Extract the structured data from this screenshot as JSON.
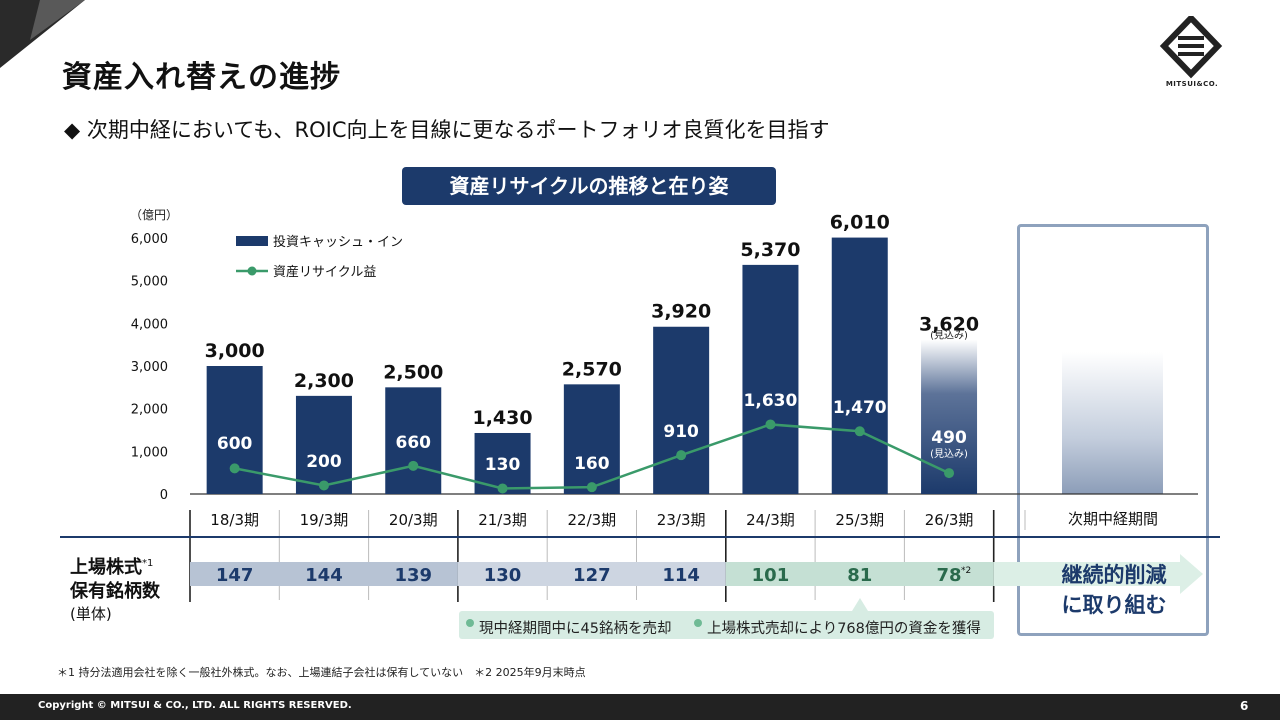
{
  "header": {
    "title": "資産入れ替えの進捗",
    "subtitle": "◆ 次期中経においても、ROIC向上を目線に更なるポートフォリオ良質化を目指す",
    "logo_text": "MITSUI&CO."
  },
  "chart_banner": "資産リサイクルの推移と在り姿",
  "chart_data": {
    "type": "bar",
    "unit_label": "（億円）",
    "categories": [
      "18/3期",
      "19/3期",
      "20/3期",
      "21/3期",
      "22/3期",
      "23/3期",
      "24/3期",
      "25/3期",
      "26/3期"
    ],
    "ylim": [
      0,
      6000
    ],
    "yticks": [
      0,
      1000,
      2000,
      3000,
      4000,
      5000,
      6000
    ],
    "y_tick_labels": [
      "0",
      "1,000",
      "2,000",
      "3,000",
      "4,000",
      "5,000",
      "6,000"
    ],
    "series": [
      {
        "name": "投資キャッシュ・イン",
        "type": "bar",
        "color": "#1c3a6b",
        "values": [
          3000,
          2300,
          2500,
          1430,
          2570,
          3920,
          5370,
          6010,
          3620
        ],
        "labels": [
          "3,000",
          "2,300",
          "2,500",
          "1,430",
          "2,570",
          "3,920",
          "5,370",
          "6,010",
          "3,620"
        ]
      },
      {
        "name": "資産リサイクル益",
        "type": "line",
        "color": "#3a9a6a",
        "values": [
          600,
          200,
          660,
          130,
          160,
          910,
          1630,
          1470,
          490
        ],
        "labels": [
          "600",
          "200",
          "660",
          "130",
          "160",
          "910",
          "1,630",
          "1,470",
          "490"
        ]
      }
    ],
    "estimate_note": "(見込み)",
    "legend_position": "top-left"
  },
  "future": {
    "label": "次期中経期間",
    "note_line1": "継続的削減",
    "note_line2": "に取り組む"
  },
  "listed": {
    "label_line1": "上場株式",
    "label_sup": "*1",
    "label_line2": "保有銘柄数",
    "unit": "(単体)",
    "counts": [
      "147",
      "144",
      "139",
      "130",
      "127",
      "114",
      "101",
      "81",
      "78"
    ],
    "last_sup": "*2",
    "note_left": "現中経期間中に45銘柄を売却",
    "note_right": "上場株式売却により768億円の資金を獲得"
  },
  "colors": {
    "navy": "#1c3a6b",
    "green": "#3a9a6a",
    "band_blue": "#b7c3d4",
    "band_green": "#c5e0d4"
  },
  "footnote": "＊1 持分法適用会社を除く一般社外株式。なお、上場連結子会社は保有していない　＊2 2025年9月末時点",
  "footer": {
    "copyright": "Copyright © MITSUI & CO., LTD. ALL RIGHTS RESERVED.",
    "page": "6"
  }
}
